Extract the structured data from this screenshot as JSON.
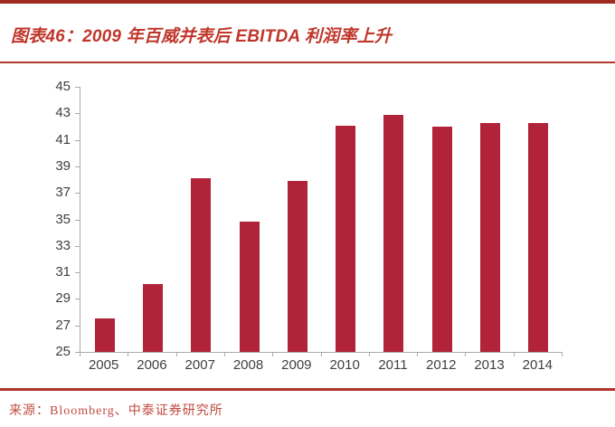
{
  "header": {
    "title": "图表46：2009 年百威并表后 EBITDA 利润率上升"
  },
  "footer": {
    "source": "来源：Bloomberg、中泰证券研究所"
  },
  "colors": {
    "bar": "#b12338",
    "title_red": "#c0362b",
    "top_rule_red": "#9f2a20",
    "divider_red": "#b03a2e",
    "source_red": "#c04a3e",
    "axis_gray": "#a9a9a9",
    "tick_label_gray": "#3f3f3f"
  },
  "chart_data": {
    "type": "bar",
    "title": "图表46：2009 年百威并表后 EBITDA 利润率上升",
    "categories": [
      "2005",
      "2006",
      "2007",
      "2008",
      "2009",
      "2010",
      "2011",
      "2012",
      "2013",
      "2014"
    ],
    "values": [
      27.5,
      30.1,
      38.1,
      34.8,
      37.9,
      42.1,
      42.9,
      42.0,
      42.3,
      42.3
    ],
    "xlabel": "",
    "ylabel": "",
    "ylim": [
      25,
      45
    ],
    "yticks": [
      25,
      27,
      29,
      31,
      33,
      35,
      37,
      39,
      41,
      43,
      45
    ],
    "grid": false,
    "legend_position": "none",
    "bar_color": "#b12338"
  }
}
